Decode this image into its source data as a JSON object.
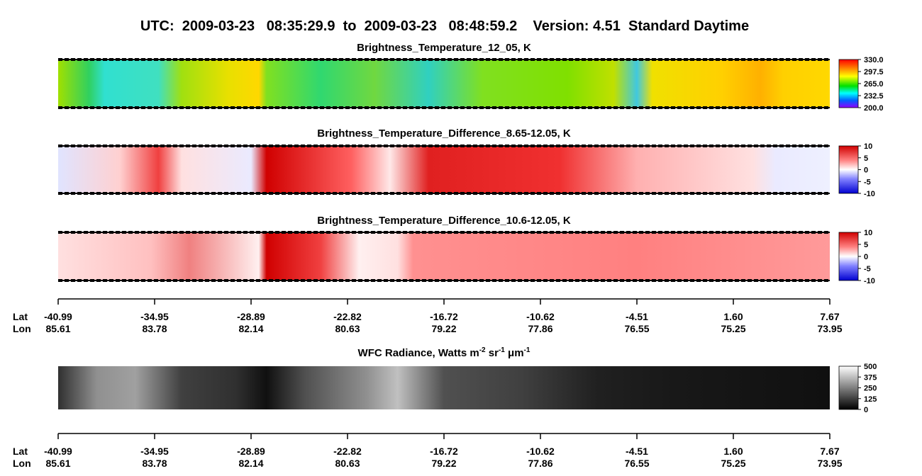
{
  "header": {
    "title": "UTC:  2009-03-23   08:35:29.9  to  2009-03-23   08:48:59.2    Version: 4.51  Standard Daytime"
  },
  "panels": [
    {
      "title": "Brightness_Temperature_12_05, K",
      "colorbar_labels": [
        "330.0",
        "297.5",
        "265.0",
        "232.5",
        "200.0"
      ]
    },
    {
      "title": "Brightness_Temperature_Difference_8.65-12.05, K",
      "colorbar_labels": [
        "10",
        "5",
        "0",
        "-5",
        "-10"
      ]
    },
    {
      "title": "Brightness_Temperature_Difference_10.6-12.05, K",
      "colorbar_labels": [
        "10",
        "5",
        "0",
        "-5",
        "-10"
      ]
    },
    {
      "title_parts": [
        "WFC Radiance, Watts m",
        "-2",
        " sr",
        "-1",
        " μm",
        "-1"
      ],
      "colorbar_labels": [
        "500",
        "375",
        "250",
        "125",
        "0"
      ]
    }
  ],
  "axes": [
    {
      "row_labels": [
        "Lat",
        "Lon"
      ],
      "lat": [
        "-40.99",
        "-34.95",
        "-28.89",
        "-22.82",
        "-16.72",
        "-10.62",
        "-4.51",
        "1.60",
        "7.67"
      ],
      "lon": [
        "85.61",
        "83.78",
        "82.14",
        "80.63",
        "79.22",
        "77.86",
        "76.55",
        "75.25",
        "73.95"
      ]
    },
    {
      "row_labels": [
        "Lat",
        "Lon"
      ],
      "lat": [
        "-40.99",
        "-34.95",
        "-28.89",
        "-22.82",
        "-16.72",
        "-10.62",
        "-4.51",
        "1.60",
        "7.67"
      ],
      "lon": [
        "85.61",
        "83.78",
        "82.14",
        "80.63",
        "79.22",
        "77.86",
        "76.55",
        "75.25",
        "73.95"
      ]
    }
  ]
}
